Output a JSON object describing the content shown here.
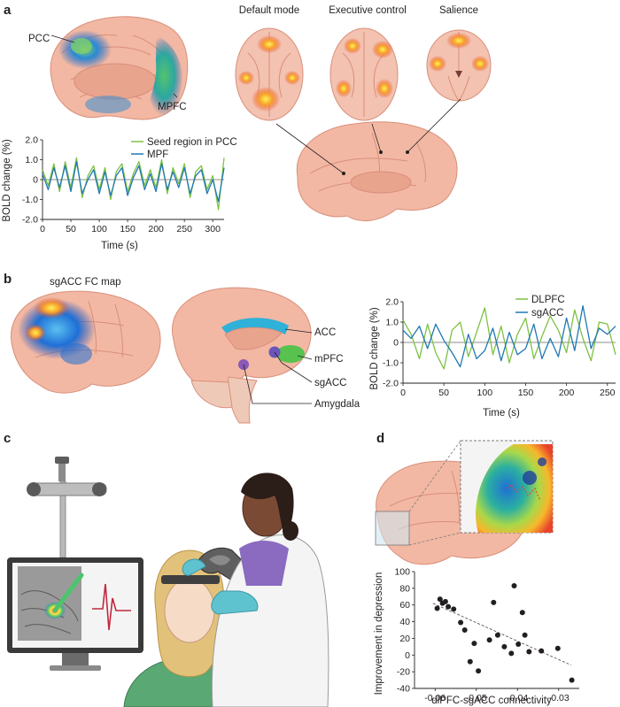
{
  "panels": {
    "a": {
      "letter": "a",
      "brain_labels": {
        "pcc": "PCC",
        "mpfc": "MPFC"
      },
      "network_titles": [
        "Default mode",
        "Executive control",
        "Salience"
      ],
      "chart_data": {
        "type": "line",
        "xlabel": "Time (s)",
        "ylabel": "BOLD change (%)",
        "xlim": [
          0,
          320
        ],
        "ylim": [
          -2.0,
          2.0
        ],
        "xticks": [
          0,
          50,
          100,
          150,
          200,
          250,
          300
        ],
        "yticks": [
          -2.0,
          -1.0,
          0,
          1.0,
          2.0
        ],
        "ytick_labels": [
          "-2.0",
          "-1.0",
          "0",
          "1.0",
          "2.0"
        ],
        "legend_position": "top-right",
        "grid": false,
        "series": [
          {
            "name": "Seed region in PCC",
            "color": "#7dc242",
            "x": [
              0,
              10,
              20,
              30,
              40,
              50,
              60,
              70,
              80,
              90,
              100,
              110,
              120,
              130,
              140,
              150,
              160,
              170,
              180,
              190,
              200,
              210,
              220,
              230,
              240,
              250,
              260,
              270,
              280,
              290,
              300,
              310,
              320
            ],
            "values": [
              0.5,
              -0.3,
              0.8,
              -0.6,
              0.9,
              -0.4,
              1.1,
              -0.9,
              0.2,
              0.7,
              -0.5,
              0.6,
              -1.0,
              0.4,
              0.8,
              -0.6,
              0.3,
              0.9,
              -0.3,
              0.5,
              -0.4,
              1.0,
              -0.7,
              0.6,
              -0.2,
              0.8,
              -0.9,
              0.4,
              0.7,
              -0.5,
              0.2,
              -1.5,
              1.1
            ]
          },
          {
            "name": "MPF",
            "color": "#1f78b4",
            "x": [
              0,
              10,
              20,
              30,
              40,
              50,
              60,
              70,
              80,
              90,
              100,
              110,
              120,
              130,
              140,
              150,
              160,
              170,
              180,
              190,
              200,
              210,
              220,
              230,
              240,
              250,
              260,
              270,
              280,
              290,
              300,
              310,
              320
            ],
            "values": [
              0.3,
              -0.5,
              0.6,
              -0.4,
              0.7,
              -0.6,
              0.9,
              -0.7,
              0.0,
              0.5,
              -0.7,
              0.4,
              -0.8,
              0.2,
              0.6,
              -0.8,
              0.1,
              0.7,
              -0.5,
              0.3,
              -0.6,
              0.8,
              -0.5,
              0.4,
              -0.4,
              0.6,
              -0.7,
              0.2,
              0.5,
              -0.7,
              0.0,
              -1.1,
              0.6
            ]
          }
        ]
      }
    },
    "b": {
      "letter": "b",
      "map_title": "sgACC FC map",
      "brain_labels": {
        "acc": "ACC",
        "mpfc": "mPFC",
        "sgacc": "sgACC",
        "amygdala": "Amygdala"
      },
      "chart_data": {
        "type": "line",
        "xlabel": "Time (s)",
        "ylabel": "BOLD change (%)",
        "xlim": [
          0,
          260
        ],
        "ylim": [
          -2.0,
          2.0
        ],
        "xticks": [
          0,
          50,
          100,
          150,
          200,
          250
        ],
        "yticks": [
          -2.0,
          -1.0,
          0,
          1.0,
          2.0
        ],
        "ytick_labels": [
          "-2.0",
          "-1.0",
          "0",
          "1.0",
          "2.0"
        ],
        "legend_position": "top-right",
        "grid": false,
        "series": [
          {
            "name": "DLPFC",
            "color": "#7dc242",
            "x": [
              0,
              10,
              20,
              30,
              40,
              50,
              60,
              70,
              80,
              90,
              100,
              110,
              120,
              130,
              140,
              150,
              160,
              170,
              180,
              190,
              200,
              210,
              220,
              230,
              240,
              250,
              260
            ],
            "values": [
              1.1,
              0.4,
              -0.8,
              0.9,
              -0.5,
              -1.3,
              0.6,
              1.0,
              -0.7,
              0.5,
              1.7,
              -0.6,
              0.8,
              -1.0,
              0.4,
              1.2,
              -0.8,
              0.3,
              1.3,
              0.6,
              -0.5,
              1.6,
              0.2,
              -0.9,
              1.0,
              0.9,
              -0.6
            ]
          },
          {
            "name": "sgACC",
            "color": "#1f78b4",
            "x": [
              0,
              10,
              20,
              30,
              40,
              50,
              60,
              70,
              80,
              90,
              100,
              110,
              120,
              130,
              140,
              150,
              160,
              170,
              180,
              190,
              200,
              210,
              220,
              230,
              240,
              250,
              260
            ],
            "values": [
              0.6,
              0.2,
              0.8,
              -0.3,
              0.9,
              0.1,
              -0.5,
              -1.2,
              0.4,
              -0.8,
              -0.4,
              0.7,
              -0.9,
              0.5,
              -0.6,
              -0.3,
              0.9,
              -0.8,
              0.2,
              -0.7,
              1.2,
              -0.4,
              1.8,
              -0.3,
              0.7,
              0.4,
              0.8
            ]
          }
        ]
      }
    },
    "c": {
      "letter": "c"
    },
    "d": {
      "letter": "d",
      "chart_data": {
        "type": "scatter",
        "xlabel": "dlPFC-sgACC connectivity",
        "ylabel": "Improvement in depression",
        "xlim": [
          -0.065,
          -0.025
        ],
        "ylim": [
          -40,
          100
        ],
        "xticks": [
          -0.06,
          -0.05,
          -0.04,
          -0.03
        ],
        "xtick_labels": [
          "-0.06",
          "-0.05",
          "-0.04",
          "-0.03"
        ],
        "yticks": [
          -40,
          -20,
          0,
          20,
          40,
          60,
          80,
          100
        ],
        "grid": false,
        "trendline": {
          "from": [
            -0.0605,
            62
          ],
          "to": [
            -0.027,
            -12
          ]
        },
        "points": [
          {
            "x": -0.0595,
            "y": 56
          },
          {
            "x": -0.0588,
            "y": 67
          },
          {
            "x": -0.0582,
            "y": 62
          },
          {
            "x": -0.0575,
            "y": 64
          },
          {
            "x": -0.0568,
            "y": 58
          },
          {
            "x": -0.0555,
            "y": 55
          },
          {
            "x": -0.0538,
            "y": 39
          },
          {
            "x": -0.0528,
            "y": 30
          },
          {
            "x": -0.0515,
            "y": -8
          },
          {
            "x": -0.0505,
            "y": 14
          },
          {
            "x": -0.0495,
            "y": -19
          },
          {
            "x": -0.0468,
            "y": 18
          },
          {
            "x": -0.0458,
            "y": 63
          },
          {
            "x": -0.0448,
            "y": 24
          },
          {
            "x": -0.0432,
            "y": 10
          },
          {
            "x": -0.0415,
            "y": 2
          },
          {
            "x": -0.0408,
            "y": 83
          },
          {
            "x": -0.0398,
            "y": 13
          },
          {
            "x": -0.0388,
            "y": 51
          },
          {
            "x": -0.0382,
            "y": 24
          },
          {
            "x": -0.0372,
            "y": 4
          },
          {
            "x": -0.0342,
            "y": 5
          },
          {
            "x": -0.0302,
            "y": 8
          },
          {
            "x": -0.0268,
            "y": -30
          }
        ]
      }
    }
  }
}
